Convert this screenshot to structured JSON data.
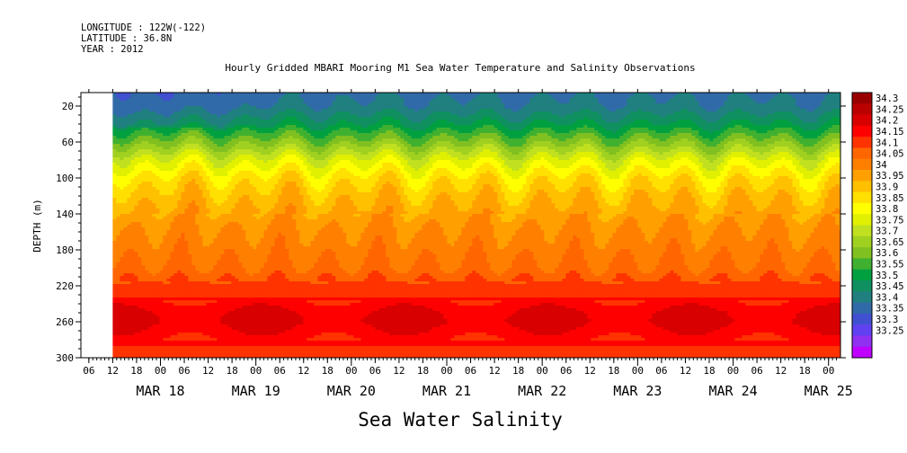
{
  "header": {
    "longitude": "LONGITUDE : 122W(-122)",
    "latitude": "LATITUDE : 36.8N",
    "year": "YEAR : 2012"
  },
  "chart_data": {
    "type": "heatmap",
    "title": "Hourly Gridded MBARI Mooring M1 Sea Water Temperature and Salinity Observations",
    "xlabel": "Sea Water Salinity",
    "ylabel": "DEPTH (m)",
    "y_reversed": true,
    "ylim": [
      300,
      5
    ],
    "y_ticks": [
      20,
      60,
      100,
      140,
      180,
      220,
      260,
      300
    ],
    "x_start": "2012-03-17T04:00",
    "x_end": "2012-03-25T03:00",
    "data_start": "2012-03-17T12:00",
    "x_tick_hours": [
      "06",
      "12",
      "18",
      "00",
      "06",
      "12",
      "18",
      "00",
      "06",
      "12",
      "18",
      "00",
      "06",
      "12",
      "18",
      "00",
      "06",
      "12",
      "18",
      "00",
      "06",
      "12",
      "18",
      "00",
      "06",
      "12",
      "18",
      "00",
      "06",
      "12",
      "18",
      "00",
      "00"
    ],
    "x_day_labels": [
      "MAR 18",
      "MAR 19",
      "MAR 20",
      "MAR 21",
      "MAR 22",
      "MAR 23",
      "MAR 24",
      "MAR 25"
    ],
    "colorbar_levels": [
      "34.3",
      "34.25",
      "34.2",
      "34.15",
      "34.1",
      "34.05",
      "34",
      "33.95",
      "33.9",
      "33.85",
      "33.8",
      "33.75",
      "33.7",
      "33.65",
      "33.6",
      "33.55",
      "33.5",
      "33.45",
      "33.4",
      "33.35",
      "33.3",
      "33.25"
    ],
    "colorbar_colors": [
      "#990000",
      "#bb0000",
      "#d80000",
      "#ff0000",
      "#ff3300",
      "#ff6600",
      "#ff8000",
      "#ffa000",
      "#ffc000",
      "#ffe000",
      "#ffff00",
      "#e0f000",
      "#c0e020",
      "#a0d020",
      "#80c020",
      "#40b030",
      "#00a040",
      "#109060",
      "#208080",
      "#306aa8",
      "#4050d0",
      "#6040f0",
      "#9030f0",
      "#c000ff"
    ],
    "depth_profile": [
      {
        "depth": 5,
        "salinity": 33.44
      },
      {
        "depth": 20,
        "salinity": 33.46
      },
      {
        "depth": 40,
        "salinity": 33.55
      },
      {
        "depth": 60,
        "salinity": 33.68
      },
      {
        "depth": 80,
        "salinity": 33.82
      },
      {
        "depth": 100,
        "salinity": 33.92
      },
      {
        "depth": 120,
        "salinity": 33.98
      },
      {
        "depth": 140,
        "salinity": 34.02
      },
      {
        "depth": 160,
        "salinity": 34.06
      },
      {
        "depth": 180,
        "salinity": 34.08
      },
      {
        "depth": 200,
        "salinity": 34.11
      },
      {
        "depth": 220,
        "salinity": 34.16
      },
      {
        "depth": 240,
        "salinity": 34.22
      },
      {
        "depth": 250,
        "salinity": 34.25
      },
      {
        "depth": 260,
        "salinity": 34.26
      },
      {
        "depth": 280,
        "salinity": 34.21
      },
      {
        "depth": 300,
        "salinity": 34.18
      }
    ]
  }
}
